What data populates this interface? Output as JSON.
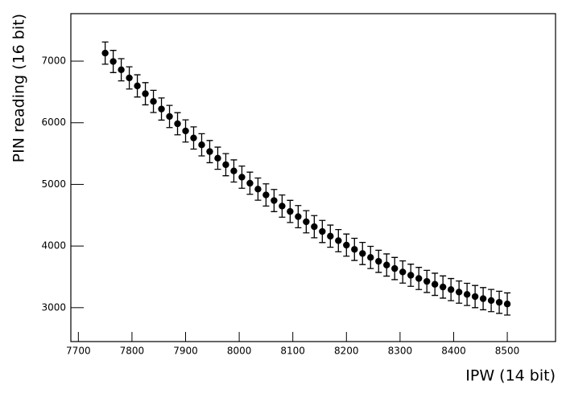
{
  "chart_data": {
    "type": "errorbar-scatter",
    "x_label": "IPW (14 bit)",
    "y_label": "PIN reading (16 bit)",
    "x": [
      7750,
      7765,
      7780,
      7795,
      7810,
      7825,
      7840,
      7855,
      7870,
      7885,
      7900,
      7915,
      7930,
      7945,
      7960,
      7975,
      7990,
      8005,
      8020,
      8035,
      8050,
      8065,
      8080,
      8095,
      8110,
      8125,
      8140,
      8155,
      8170,
      8185,
      8200,
      8215,
      8230,
      8245,
      8260,
      8275,
      8290,
      8305,
      8320,
      8335,
      8350,
      8365,
      8380,
      8395,
      8410,
      8425,
      8440,
      8455,
      8470,
      8485,
      8500
    ],
    "values": [
      7130,
      6994,
      6860,
      6728,
      6598,
      6471,
      6346,
      6223,
      6102,
      5984,
      5867,
      5753,
      5642,
      5532,
      5425,
      5320,
      5218,
      5117,
      5019,
      4923,
      4829,
      4738,
      4648,
      4561,
      4477,
      4394,
      4314,
      4236,
      4160,
      4087,
      4015,
      3946,
      3879,
      3815,
      3752,
      3692,
      3635,
      3579,
      3526,
      3474,
      3426,
      3379,
      3335,
      3293,
      3253,
      3215,
      3180,
      3146,
      3116,
      3087,
      3060
    ],
    "errors": [
      180,
      180,
      180,
      180,
      180,
      180,
      180,
      180,
      180,
      180,
      180,
      180,
      180,
      180,
      180,
      180,
      180,
      180,
      180,
      180,
      180,
      180,
      180,
      180,
      180,
      180,
      180,
      180,
      180,
      180,
      180,
      180,
      180,
      180,
      180,
      180,
      180,
      180,
      180,
      180,
      180,
      180,
      180,
      180,
      180,
      180,
      180,
      180,
      180,
      180,
      180
    ],
    "color": "#000000",
    "xlim": [
      7686,
      8590
    ],
    "xticks": [
      7700,
      7800,
      7900,
      8000,
      8100,
      8200,
      8300,
      8400,
      8500
    ],
    "ylim": [
      2450,
      7770
    ],
    "yticks": [
      3000,
      4000,
      5000,
      6000,
      7000
    ]
  }
}
